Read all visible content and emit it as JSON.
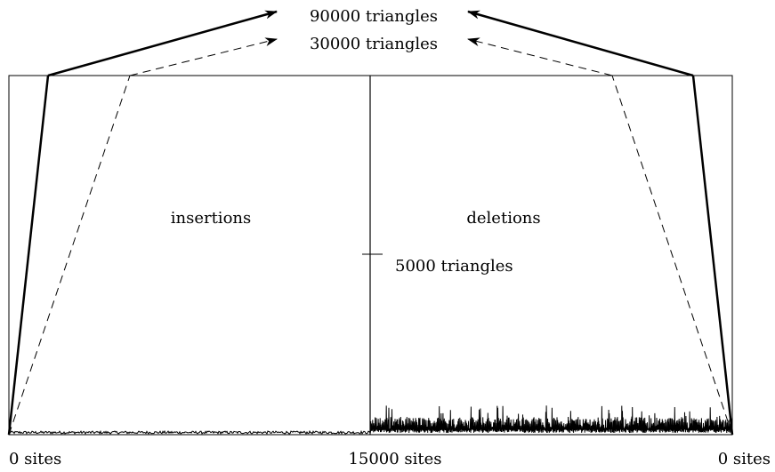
{
  "labels": {
    "top_upper": "90000 triangles",
    "top_lower": "30000 triangles",
    "left_region": "insertions",
    "right_region": "deletions",
    "mid_tick": "5000 triangles",
    "axis_left": "0 sites",
    "axis_mid": "15000 sites",
    "axis_right": "0 sites"
  }
}
